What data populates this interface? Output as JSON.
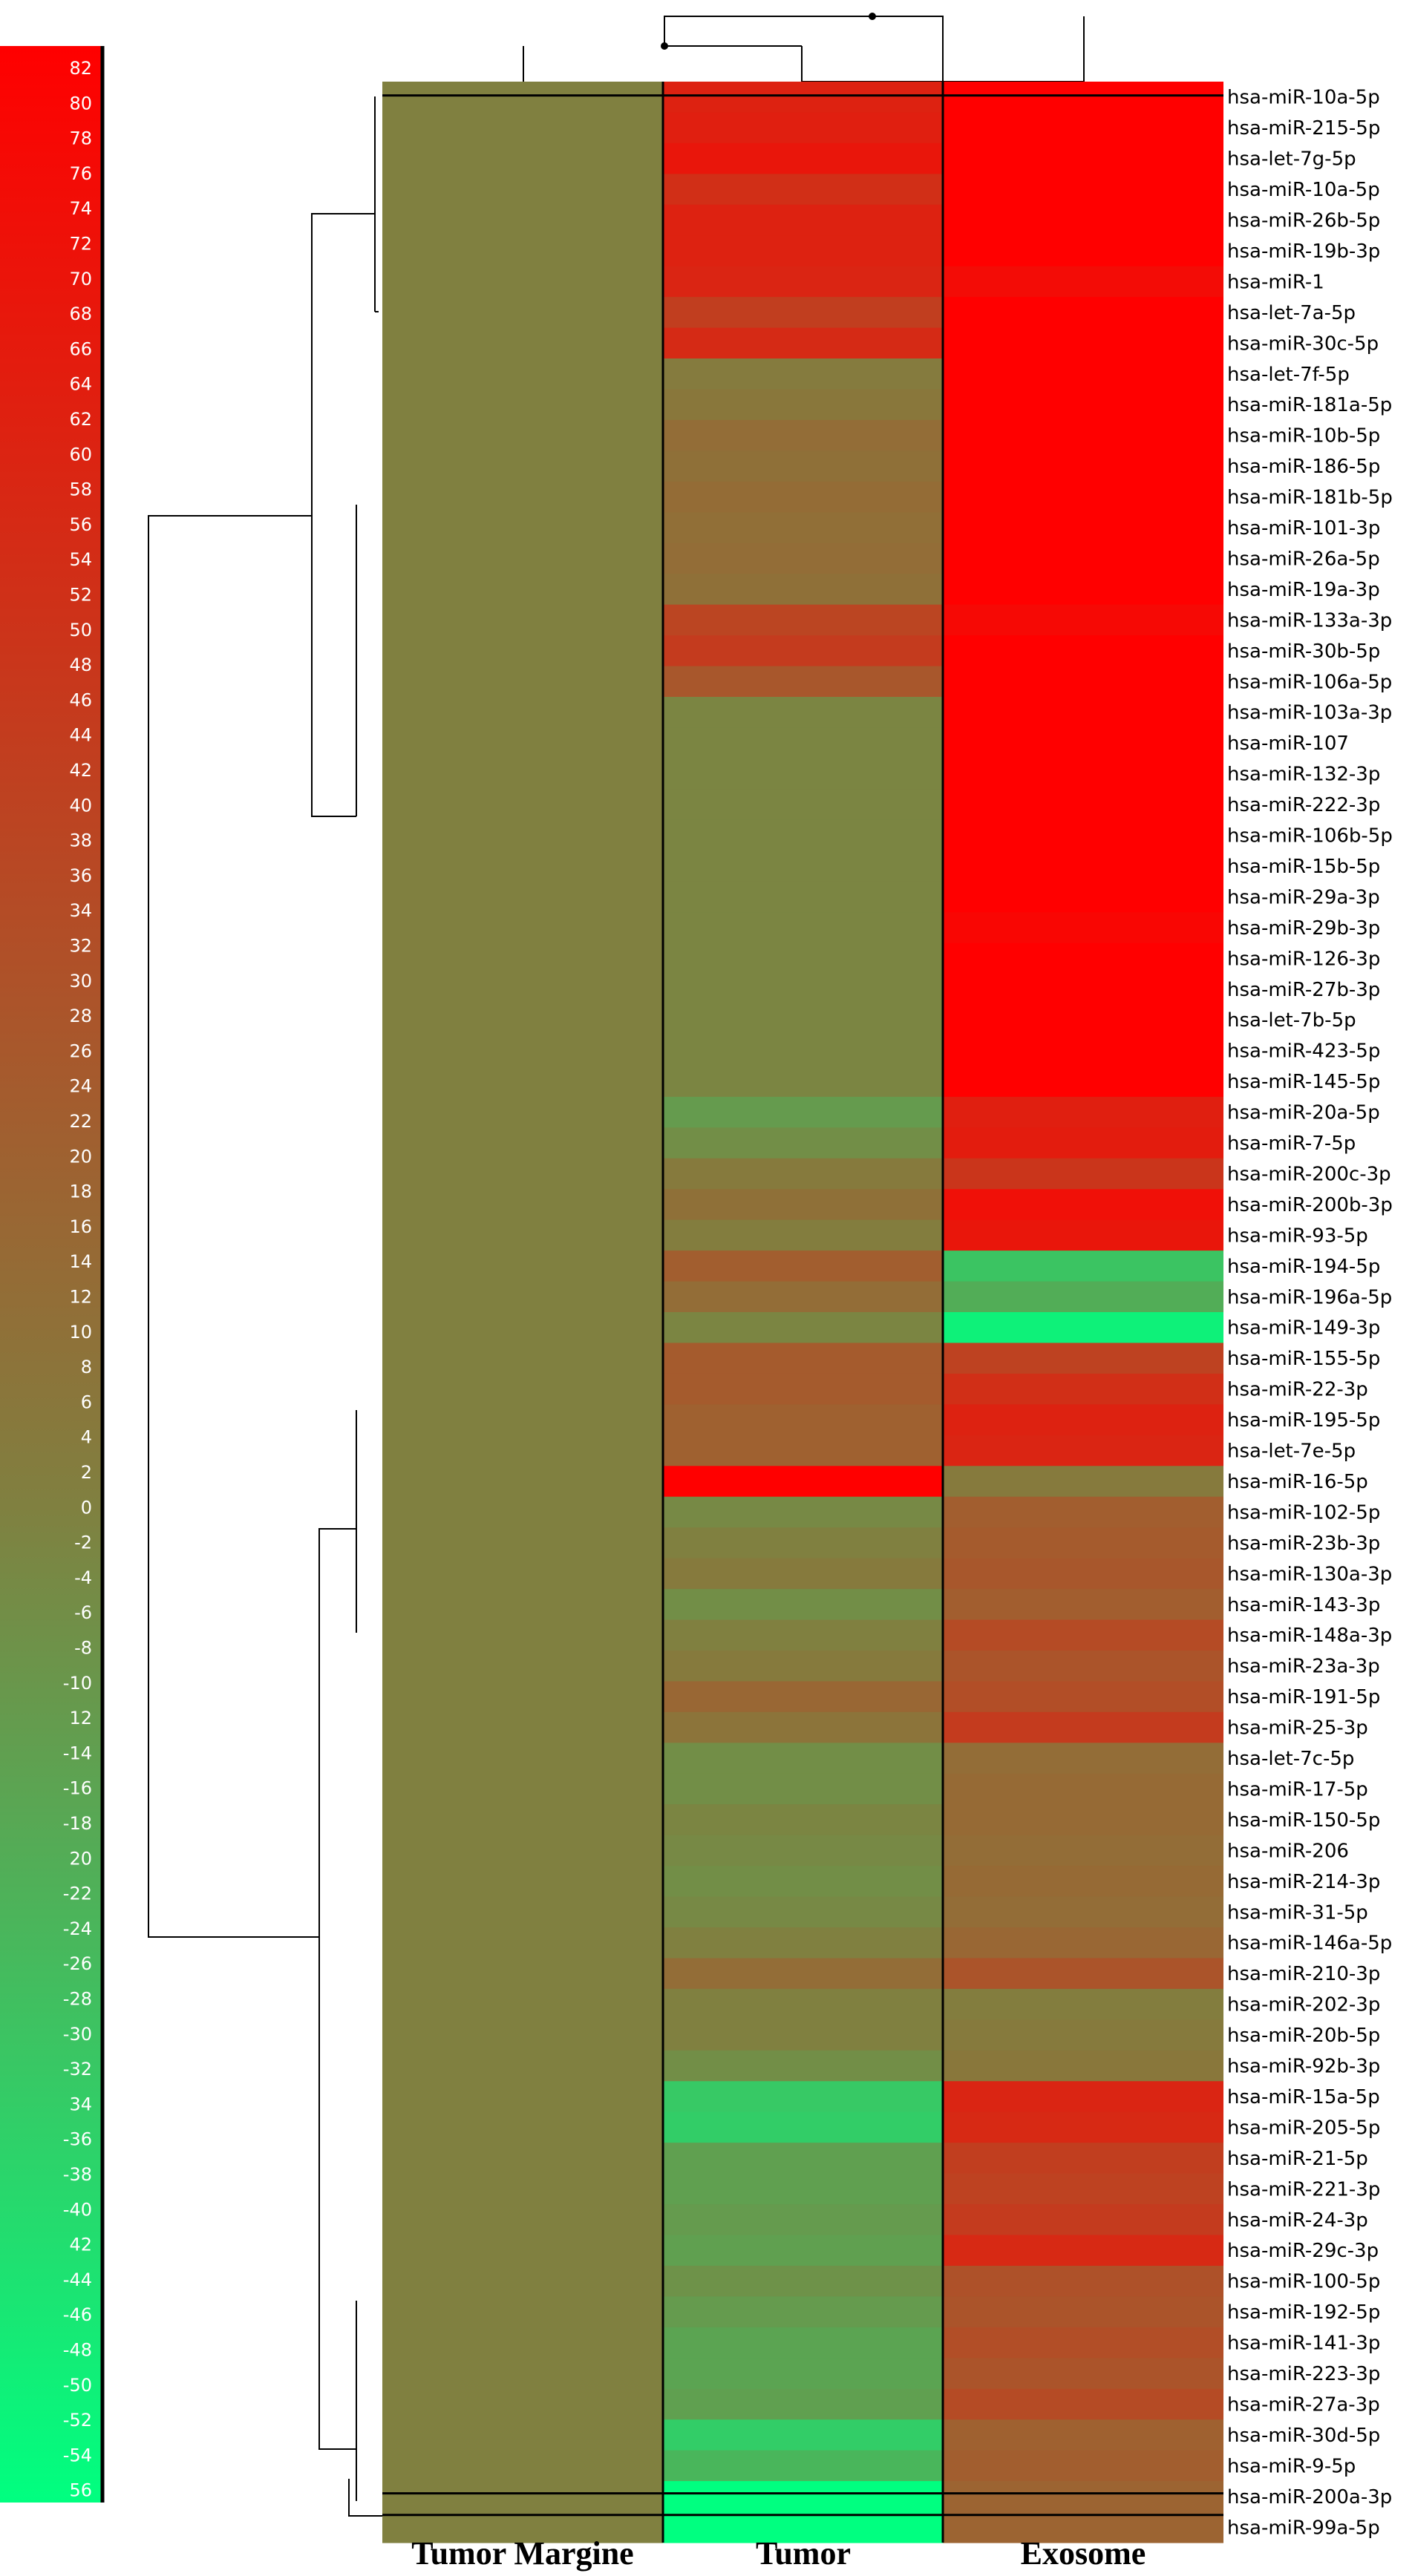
{
  "chart_data": {
    "type": "heatmap",
    "title": "",
    "columns": [
      "Tumor Margine",
      "Tumor",
      "Exosome"
    ],
    "color_scale": {
      "min": -56,
      "max": 82,
      "low_color": "#00ff80",
      "mid_color": "#808040",
      "high_color": "#ff0000",
      "ticks": [
        "82",
        "80",
        "78",
        "76",
        "74",
        "72",
        "70",
        "68",
        "66",
        "64",
        "62",
        "60",
        "58",
        "56",
        "54",
        "52",
        "50",
        "48",
        "46",
        "44",
        "42",
        "40",
        "38",
        "36",
        "34",
        "32",
        "30",
        "28",
        "26",
        "24",
        "22",
        "20",
        "18",
        "16",
        "14",
        "12",
        "10",
        "8",
        "6",
        "4",
        "2",
        "0",
        "-2",
        "-4",
        "-6",
        "-8",
        "-10",
        "12",
        "-14",
        "-16",
        "-18",
        "20",
        "-22",
        "-24",
        "-26",
        "-28",
        "-30",
        "-32",
        "34",
        "-36",
        "-38",
        "-40",
        "42",
        "-44",
        "-46",
        "-48",
        "-50",
        "-52",
        "-54",
        "56"
      ]
    },
    "rows": [
      {
        "gene": "hsa-miR-10a-5p",
        "values": [
          0,
          60,
          82
        ]
      },
      {
        "gene": "hsa-miR-215-5p",
        "values": [
          0,
          62,
          82
        ]
      },
      {
        "gene": "hsa-let-7g-5p",
        "values": [
          0,
          68,
          82
        ]
      },
      {
        "gene": "hsa-miR-10a-5p",
        "values": [
          0,
          52,
          82
        ]
      },
      {
        "gene": "hsa-miR-26b-5p",
        "values": [
          0,
          60,
          82
        ]
      },
      {
        "gene": "hsa-miR-19b-3p",
        "values": [
          0,
          60,
          82
        ]
      },
      {
        "gene": "hsa-miR-1",
        "values": [
          0,
          58,
          74
        ]
      },
      {
        "gene": "hsa-let-7a-5p",
        "values": [
          0,
          42,
          82
        ]
      },
      {
        "gene": "hsa-miR-30c-5p",
        "values": [
          0,
          55,
          82
        ]
      },
      {
        "gene": "hsa-let-7f-5p",
        "values": [
          0,
          3,
          82
        ]
      },
      {
        "gene": "hsa-miR-181a-5p",
        "values": [
          0,
          6,
          82
        ]
      },
      {
        "gene": "hsa-miR-10b-5p",
        "values": [
          0,
          12,
          82
        ]
      },
      {
        "gene": "hsa-miR-186-5p",
        "values": [
          0,
          10,
          82
        ]
      },
      {
        "gene": "hsa-miR-181b-5p",
        "values": [
          0,
          13,
          82
        ]
      },
      {
        "gene": "hsa-miR-101-3p",
        "values": [
          0,
          11,
          82
        ]
      },
      {
        "gene": "hsa-miR-26a-5p",
        "values": [
          0,
          12,
          82
        ]
      },
      {
        "gene": "hsa-miR-19a-3p",
        "values": [
          0,
          10,
          82
        ]
      },
      {
        "gene": "hsa-miR-133a-3p",
        "values": [
          0,
          38,
          76
        ]
      },
      {
        "gene": "hsa-miR-30b-5p",
        "values": [
          0,
          44,
          82
        ]
      },
      {
        "gene": "hsa-miR-106a-5p",
        "values": [
          0,
          26,
          82
        ]
      },
      {
        "gene": "hsa-miR-103a-3p",
        "values": [
          0,
          -2,
          82
        ]
      },
      {
        "gene": "hsa-miR-107",
        "values": [
          0,
          -2,
          82
        ]
      },
      {
        "gene": "hsa-miR-132-3p",
        "values": [
          0,
          -2,
          82
        ]
      },
      {
        "gene": "hsa-miR-222-3p",
        "values": [
          0,
          -2,
          82
        ]
      },
      {
        "gene": "hsa-miR-106b-5p",
        "values": [
          0,
          -2,
          82
        ]
      },
      {
        "gene": "hsa-miR-15b-5p",
        "values": [
          0,
          -2,
          82
        ]
      },
      {
        "gene": "hsa-miR-29a-3p",
        "values": [
          0,
          -2,
          82
        ]
      },
      {
        "gene": "hsa-miR-29b-3p",
        "values": [
          0,
          -2,
          78
        ]
      },
      {
        "gene": "hsa-miR-126-3p",
        "values": [
          0,
          -2,
          82
        ]
      },
      {
        "gene": "hsa-miR-27b-3p",
        "values": [
          0,
          -2,
          82
        ]
      },
      {
        "gene": "hsa-let-7b-5p",
        "values": [
          0,
          -2,
          82
        ]
      },
      {
        "gene": "hsa-miR-423-5p",
        "values": [
          0,
          -2,
          82
        ]
      },
      {
        "gene": "hsa-miR-145-5p",
        "values": [
          0,
          -2,
          82
        ]
      },
      {
        "gene": "hsa-miR-20a-5p",
        "values": [
          0,
          -12,
          62
        ]
      },
      {
        "gene": "hsa-miR-7-5p",
        "values": [
          0,
          -6,
          64
        ]
      },
      {
        "gene": "hsa-miR-200c-3p",
        "values": [
          0,
          4,
          48
        ]
      },
      {
        "gene": "hsa-miR-200b-3p",
        "values": [
          0,
          10,
          72
        ]
      },
      {
        "gene": "hsa-miR-93-5p",
        "values": [
          0,
          2,
          68
        ]
      },
      {
        "gene": "hsa-miR-194-5p",
        "values": [
          0,
          22,
          -30
        ]
      },
      {
        "gene": "hsa-miR-196a-5p",
        "values": [
          0,
          12,
          -20
        ]
      },
      {
        "gene": "hsa-miR-149-3p",
        "values": [
          0,
          -2,
          -50
        ]
      },
      {
        "gene": "hsa-miR-155-5p",
        "values": [
          0,
          24,
          40
        ]
      },
      {
        "gene": "hsa-miR-22-3p",
        "values": [
          0,
          24,
          52
        ]
      },
      {
        "gene": "hsa-miR-195-5p",
        "values": [
          0,
          20,
          60
        ]
      },
      {
        "gene": "hsa-let-7e-5p",
        "values": [
          0,
          20,
          58
        ]
      },
      {
        "gene": "hsa-miR-16-5p",
        "values": [
          0,
          82,
          4
        ]
      },
      {
        "gene": "hsa-miR-102-5p",
        "values": [
          0,
          -4,
          22
        ]
      },
      {
        "gene": "hsa-miR-23b-3p",
        "values": [
          0,
          0,
          24
        ]
      },
      {
        "gene": "hsa-miR-130a-3p",
        "values": [
          0,
          4,
          26
        ]
      },
      {
        "gene": "hsa-miR-143-3p",
        "values": [
          0,
          -6,
          22
        ]
      },
      {
        "gene": "hsa-miR-148a-3p",
        "values": [
          0,
          0,
          34
        ]
      },
      {
        "gene": "hsa-miR-23a-3p",
        "values": [
          0,
          4,
          28
        ]
      },
      {
        "gene": "hsa-miR-191-5p",
        "values": [
          0,
          16,
          32
        ]
      },
      {
        "gene": "hsa-miR-25-3p",
        "values": [
          0,
          8,
          44
        ]
      },
      {
        "gene": "hsa-let-7c-5p",
        "values": [
          0,
          -6,
          12
        ]
      },
      {
        "gene": "hsa-miR-17-5p",
        "values": [
          0,
          -6,
          14
        ]
      },
      {
        "gene": "hsa-miR-150-5p",
        "values": [
          0,
          -2,
          14
        ]
      },
      {
        "gene": "hsa-miR-206",
        "values": [
          0,
          -4,
          12
        ]
      },
      {
        "gene": "hsa-miR-214-3p",
        "values": [
          0,
          -6,
          14
        ]
      },
      {
        "gene": "hsa-miR-31-5p",
        "values": [
          0,
          -4,
          12
        ]
      },
      {
        "gene": "hsa-miR-146a-5p",
        "values": [
          0,
          0,
          16
        ]
      },
      {
        "gene": "hsa-miR-210-3p",
        "values": [
          0,
          12,
          28
        ]
      },
      {
        "gene": "hsa-miR-202-3p",
        "values": [
          0,
          0,
          2
        ]
      },
      {
        "gene": "hsa-miR-20b-5p",
        "values": [
          0,
          0,
          4
        ]
      },
      {
        "gene": "hsa-miR-92b-3p",
        "values": [
          0,
          -6,
          6
        ]
      },
      {
        "gene": "hsa-miR-15a-5p",
        "values": [
          0,
          -32,
          58
        ]
      },
      {
        "gene": "hsa-miR-205-5p",
        "values": [
          0,
          -34,
          56
        ]
      },
      {
        "gene": "hsa-miR-21-5p",
        "values": [
          0,
          -14,
          42
        ]
      },
      {
        "gene": "hsa-miR-221-3p",
        "values": [
          0,
          -14,
          40
        ]
      },
      {
        "gene": "hsa-miR-24-3p",
        "values": [
          0,
          -12,
          44
        ]
      },
      {
        "gene": "hsa-miR-29c-3p",
        "values": [
          0,
          -14,
          56
        ]
      },
      {
        "gene": "hsa-miR-100-5p",
        "values": [
          0,
          -8,
          30
        ]
      },
      {
        "gene": "hsa-miR-192-5p",
        "values": [
          0,
          -12,
          28
        ]
      },
      {
        "gene": "hsa-miR-141-3p",
        "values": [
          0,
          -16,
          32
        ]
      },
      {
        "gene": "hsa-miR-223-3p",
        "values": [
          0,
          -16,
          28
        ]
      },
      {
        "gene": "hsa-miR-27a-3p",
        "values": [
          0,
          -14,
          34
        ]
      },
      {
        "gene": "hsa-miR-30d-5p",
        "values": [
          0,
          -34,
          20
        ]
      },
      {
        "gene": "hsa-miR-9-5p",
        "values": [
          0,
          -24,
          22
        ]
      },
      {
        "gene": "hsa-miR-200a-3p",
        "values": [
          0,
          -56,
          18
        ]
      },
      {
        "gene": "hsa-miR-99a-5p",
        "values": [
          0,
          -56,
          18
        ]
      }
    ]
  }
}
